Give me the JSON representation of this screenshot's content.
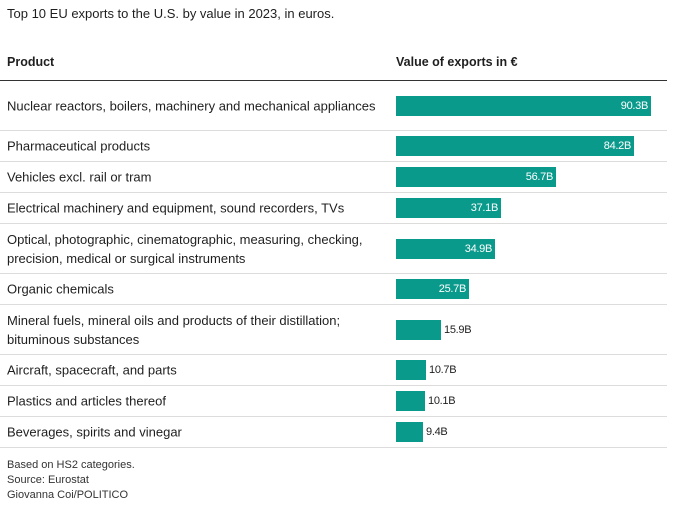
{
  "title": "Top 10 EU exports to the U.S. by value in 2023, in euros.",
  "header": {
    "product": "Product",
    "value": "Value of exports in €"
  },
  "chart_data": {
    "type": "bar",
    "title": "Top 10 EU exports to the U.S. by value in 2023, in euros.",
    "xlabel": "",
    "ylabel": "Value of exports in €",
    "bar_color": "#0a9a8c",
    "categories": [
      "Nuclear reactors, boilers, machinery and mechanical appliances",
      "Pharmaceutical products",
      "Vehicles excl. rail or tram",
      "Electrical machinery and equipment, sound recorders, TVs",
      "Optical, photographic, cinematographic, measuring, checking, precision, medical or surgical instruments",
      "Organic chemicals",
      "Mineral fuels, mineral oils and products of their distillation; bituminous substances",
      "Aircraft, spacecraft, and parts",
      "Plastics and articles thereof",
      "Beverages, spirits and vinegar"
    ],
    "values": [
      90.3,
      84.2,
      56.7,
      37.1,
      34.9,
      25.7,
      15.9,
      10.7,
      10.1,
      9.4
    ],
    "value_labels": [
      "90.3B",
      "84.2B",
      "56.7B",
      "37.1B",
      "34.9B",
      "25.7B",
      "15.9B",
      "10.7B",
      "10.1B",
      "9.4B"
    ]
  },
  "footer": {
    "note": "Based on HS2 categories.",
    "source": "Source: Eurostat",
    "credit": "Giovanna Coi/POLITICO"
  }
}
